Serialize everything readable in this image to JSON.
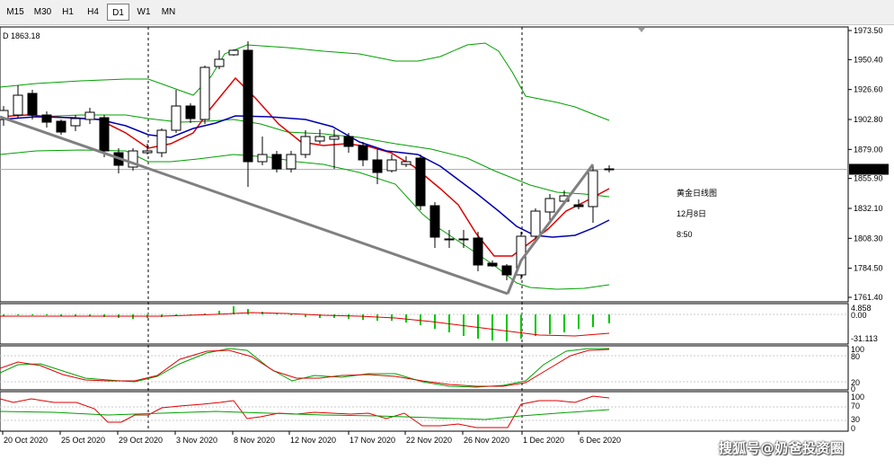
{
  "toolbar": {
    "timeframes": [
      "M15",
      "M30",
      "H1",
      "H4",
      "D1",
      "W1",
      "MN"
    ],
    "active": "D1"
  },
  "main_label": "D 1863.18",
  "annotation": [
    "黄金日线图",
    "12月8日",
    "8:50"
  ],
  "price_axis": {
    "ticks": [
      "1973.50",
      "1950.40",
      "1926.60",
      "1902.80",
      "1879.00",
      "1855.90",
      "1832.10",
      "1808.30",
      "1784.50",
      "1761.40"
    ],
    "current": "1863.18"
  },
  "macd_axis": {
    "ticks": [
      "4.858",
      "0.00",
      "-31.113"
    ]
  },
  "stoch_axis": {
    "ticks": [
      "100",
      "80",
      "20",
      "0"
    ]
  },
  "rsi_axis": {
    "ticks": [
      "100",
      "70",
      "30",
      "0"
    ]
  },
  "date_axis": [
    "20 Oct 2020",
    "25 Oct 2020",
    "29 Oct 2020",
    "3 Nov 2020",
    "8 Nov 2020",
    "12 Nov 2020",
    "17 Nov 2020",
    "22 Nov 2020",
    "26 Nov 2020",
    "1 Dec 2020",
    "6 Dec 2020"
  ],
  "watermark": "搜狐号@奶爸投资圈",
  "colors": {
    "fast_ma": "#e00000",
    "slow_ma": "#0000b0",
    "bands": "#00a000",
    "annotation": "#e00000",
    "trendline": "#808080"
  }
}
